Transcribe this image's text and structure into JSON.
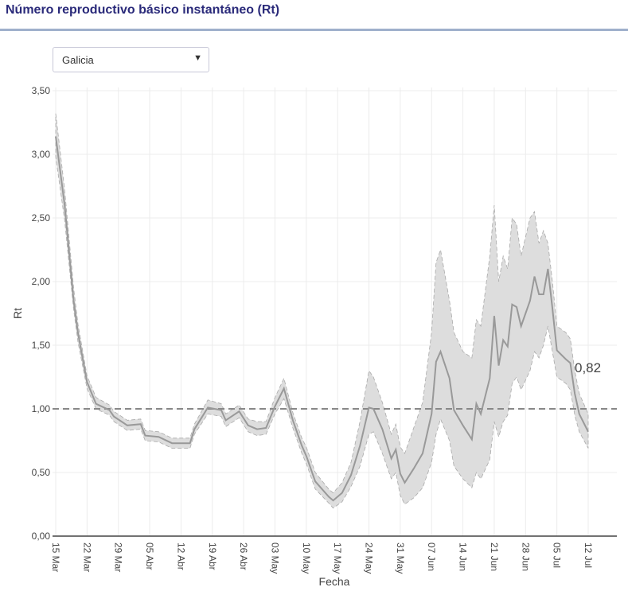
{
  "header": {
    "title": "Número reproductivo básico instantáneo (Rt)"
  },
  "region_select": {
    "value": "Galicia"
  },
  "chart_data": {
    "type": "line",
    "title": "Número reproductivo básico instantáneo (Rt)",
    "xlabel": "Fecha",
    "ylabel": "Rt",
    "x_unit": "days since 15 Mar",
    "ylim": [
      0,
      3.5
    ],
    "yticks": [
      0,
      0.5,
      1,
      1.5,
      2,
      2.5,
      3,
      3.5
    ],
    "ytick_labels": [
      "0,00",
      "0,50",
      "1,00",
      "1,50",
      "2,00",
      "2,50",
      "3,00",
      "3,50"
    ],
    "xticks": [
      0,
      7,
      14,
      21,
      28,
      35,
      42,
      49,
      56,
      63,
      70,
      77,
      84,
      91,
      98,
      105,
      112,
      119
    ],
    "xtick_labels": [
      "15 Mar",
      "22 Mar",
      "29 Mar",
      "05 Abr",
      "12 Abr",
      "19 Abr",
      "26 Abr",
      "03 May",
      "10 May",
      "17 May",
      "24 May",
      "31 May",
      "07 Jun",
      "14 Jun",
      "21 Jun",
      "28 Jun",
      "05 Jul",
      "12 Jul"
    ],
    "reference_line": 1.0,
    "last_value_label": "0,82",
    "colors": {
      "line": "#999999",
      "band": "#dddddd",
      "band_edge": "#aaaaaa",
      "ref": "#888888"
    },
    "x": [
      0,
      2,
      4,
      5,
      7,
      9,
      12,
      13,
      16,
      19,
      20,
      23,
      26,
      30,
      31,
      34,
      37,
      38,
      41,
      43,
      45,
      47,
      49,
      51,
      53,
      55,
      56,
      58,
      61,
      62,
      64,
      66,
      68,
      70,
      71,
      73,
      75,
      76,
      77,
      78,
      80,
      82,
      84,
      85,
      86,
      88,
      89,
      91,
      93,
      94,
      95,
      97,
      98,
      99,
      100,
      101,
      102,
      103,
      104,
      106,
      107,
      108,
      109,
      110,
      111,
      112,
      114,
      115,
      116,
      117,
      119
    ],
    "rt": [
      3.14,
      2.6,
      1.85,
      1.59,
      1.21,
      1.04,
      0.99,
      0.94,
      0.87,
      0.88,
      0.79,
      0.78,
      0.73,
      0.73,
      0.84,
      1.01,
      0.99,
      0.91,
      0.98,
      0.87,
      0.84,
      0.85,
      1.02,
      1.16,
      0.91,
      0.71,
      0.63,
      0.43,
      0.31,
      0.28,
      0.34,
      0.48,
      0.71,
      1.01,
      1.0,
      0.84,
      0.61,
      0.68,
      0.49,
      0.42,
      0.53,
      0.65,
      0.96,
      1.37,
      1.45,
      1.24,
      0.99,
      0.87,
      0.76,
      1.04,
      0.96,
      1.24,
      1.73,
      1.34,
      1.54,
      1.49,
      1.82,
      1.8,
      1.65,
      1.85,
      2.04,
      1.9,
      1.9,
      2.1,
      1.79,
      1.46,
      1.39,
      1.36,
      1.12,
      0.96,
      0.82
    ],
    "lower": [
      2.98,
      2.48,
      1.78,
      1.52,
      1.16,
      1.0,
      0.95,
      0.9,
      0.83,
      0.84,
      0.75,
      0.74,
      0.69,
      0.69,
      0.8,
      0.96,
      0.94,
      0.86,
      0.93,
      0.82,
      0.79,
      0.8,
      0.96,
      1.08,
      0.85,
      0.65,
      0.57,
      0.37,
      0.26,
      0.22,
      0.27,
      0.39,
      0.55,
      0.8,
      0.82,
      0.65,
      0.45,
      0.5,
      0.32,
      0.25,
      0.3,
      0.38,
      0.58,
      0.8,
      0.92,
      0.75,
      0.55,
      0.45,
      0.38,
      0.5,
      0.45,
      0.6,
      0.9,
      0.78,
      0.9,
      0.95,
      1.2,
      1.25,
      1.15,
      1.3,
      1.45,
      1.4,
      1.5,
      1.65,
      1.45,
      1.25,
      1.2,
      1.15,
      0.95,
      0.82,
      0.69
    ],
    "upper": [
      3.32,
      2.72,
      1.95,
      1.66,
      1.26,
      1.09,
      1.03,
      0.98,
      0.91,
      0.92,
      0.83,
      0.82,
      0.77,
      0.77,
      0.88,
      1.07,
      1.04,
      0.96,
      1.03,
      0.92,
      0.9,
      0.9,
      1.09,
      1.24,
      0.97,
      0.77,
      0.7,
      0.5,
      0.37,
      0.34,
      0.42,
      0.58,
      0.9,
      1.3,
      1.25,
      1.05,
      0.8,
      0.88,
      0.7,
      0.65,
      0.85,
      1.05,
      1.6,
      2.15,
      2.25,
      1.85,
      1.6,
      1.45,
      1.4,
      1.7,
      1.65,
      2.2,
      2.6,
      2.0,
      2.2,
      2.1,
      2.5,
      2.45,
      2.2,
      2.5,
      2.55,
      2.3,
      2.4,
      2.3,
      2.0,
      1.65,
      1.6,
      1.55,
      1.3,
      1.12,
      0.96
    ]
  }
}
